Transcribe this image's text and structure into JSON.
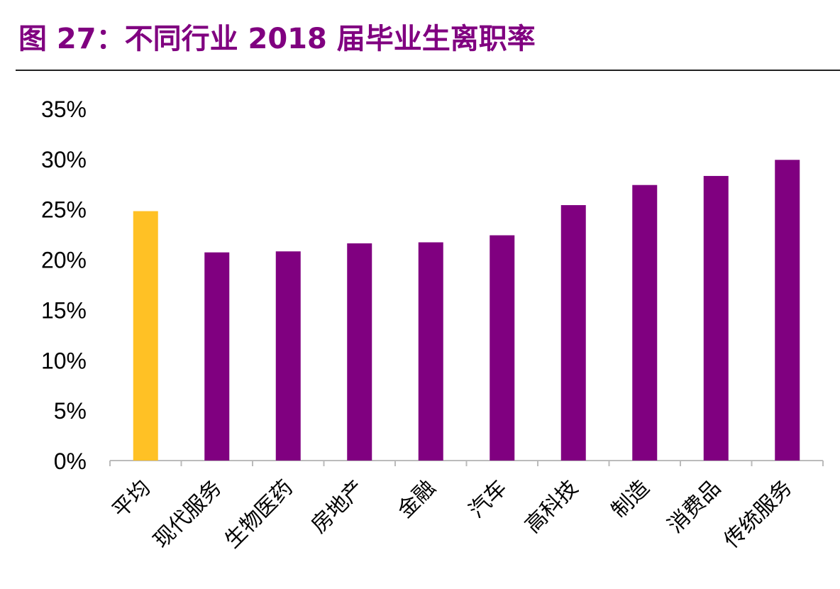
{
  "title": "图 27：不同行业 2018 届毕业生离职率",
  "colors": {
    "title": "#800080",
    "bar": "#800080",
    "highlight": "#FFC125"
  },
  "chart_data": {
    "type": "bar",
    "title": "图 27：不同行业 2018 届毕业生离职率",
    "categories": [
      "平均",
      "现代服务",
      "生物医药",
      "房地产",
      "金融",
      "汽车",
      "高科技",
      "制造",
      "消费品",
      "传统服务"
    ],
    "values": [
      24.8,
      20.7,
      20.8,
      21.6,
      21.7,
      22.4,
      25.4,
      27.4,
      28.3,
      29.9
    ],
    "unit": "%",
    "highlight_category": "平均",
    "ylim": [
      0,
      35
    ],
    "yticks": [
      "0%",
      "5%",
      "10%",
      "15%",
      "20%",
      "25%",
      "30%",
      "35%"
    ],
    "grid": false,
    "legend": "none"
  }
}
